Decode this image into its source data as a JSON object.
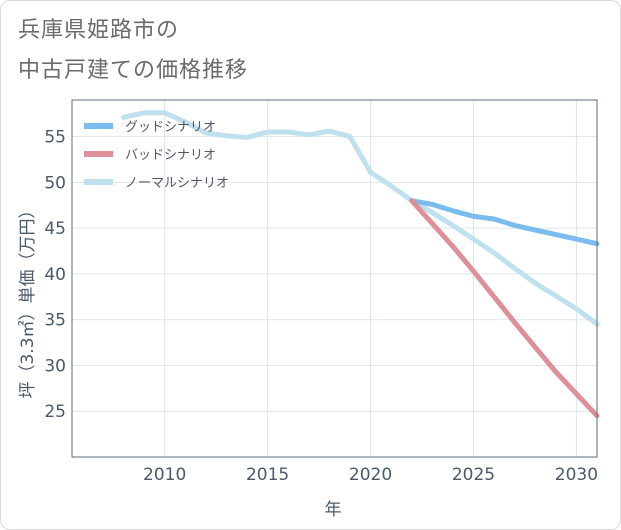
{
  "title_line1": "兵庫県姫路市の",
  "title_line2": "中古戸建ての価格推移",
  "chart_data": {
    "type": "line",
    "xlabel": "年",
    "ylabel": "坪（3.3㎡）単価（万円）",
    "xlim": [
      2005.5,
      2031
    ],
    "ylim": [
      20,
      59
    ],
    "xticks": [
      2010,
      2015,
      2020,
      2025,
      2030
    ],
    "yticks": [
      25,
      30,
      35,
      40,
      45,
      50,
      55
    ],
    "grid": true,
    "legend_position": "top-left",
    "series": [
      {
        "name": "グッドシナリオ",
        "color": "#7bbcee",
        "x": [
          2022,
          2023,
          2024,
          2025,
          2026,
          2027,
          2028,
          2029,
          2030,
          2031
        ],
        "y": [
          48.0,
          47.6,
          46.9,
          46.3,
          46.0,
          45.3,
          44.8,
          44.3,
          43.8,
          43.3
        ]
      },
      {
        "name": "バッドシナリオ",
        "color": "#df8f98",
        "x": [
          2022,
          2023,
          2024,
          2025,
          2026,
          2027,
          2028,
          2029,
          2030,
          2031
        ],
        "y": [
          48.0,
          45.5,
          43.0,
          40.3,
          37.5,
          34.7,
          32.0,
          29.3,
          26.9,
          24.5
        ]
      },
      {
        "name": "ノーマルシナリオ",
        "color": "#bfe0ee",
        "x": [
          2008,
          2009,
          2010,
          2011,
          2012,
          2013,
          2014,
          2015,
          2016,
          2017,
          2018,
          2019,
          2020,
          2021,
          2022,
          2023,
          2024,
          2025,
          2026,
          2027,
          2028,
          2029,
          2030,
          2031
        ],
        "y": [
          57.1,
          57.6,
          57.6,
          56.6,
          55.4,
          55.1,
          54.9,
          55.5,
          55.5,
          55.2,
          55.6,
          55.0,
          51.1,
          49.6,
          48.0,
          46.7,
          45.3,
          43.8,
          42.3,
          40.6,
          39.0,
          37.6,
          36.2,
          34.5
        ]
      }
    ]
  }
}
